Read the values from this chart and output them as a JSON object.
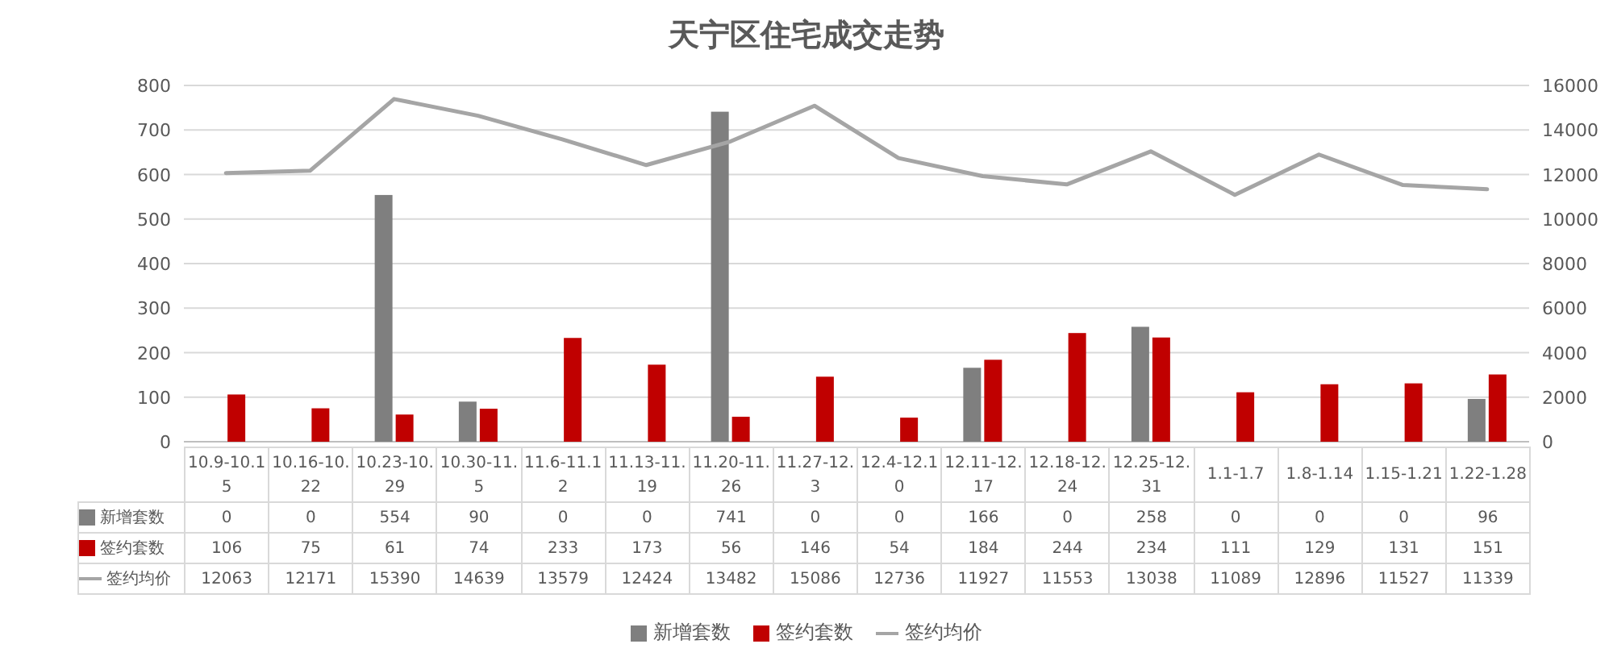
{
  "chart_data": {
    "type": "bar",
    "title": "天宁区住宅成交走势",
    "categories": [
      "10.9-10.15",
      "10.16-10.22",
      "10.23-10.29",
      "10.30-11.5",
      "11.6-11.12",
      "11.13-11.19",
      "11.20-11.26",
      "11.27-12.3",
      "12.4-12.10",
      "12.11-12.17",
      "12.18-12.24",
      "12.25-12.31",
      "1.1-1.7",
      "1.8-1.14",
      "1.15-1.21",
      "1.22-1.28"
    ],
    "series": [
      {
        "name": "新增套数",
        "color": "#7f7f7f",
        "values": [
          0,
          0,
          554,
          90,
          0,
          0,
          741,
          0,
          0,
          166,
          0,
          258,
          0,
          0,
          0,
          96
        ]
      },
      {
        "name": "签约套数",
        "color": "#c00000",
        "values": [
          106,
          75,
          61,
          74,
          233,
          173,
          56,
          146,
          54,
          184,
          244,
          234,
          111,
          129,
          131,
          151
        ]
      },
      {
        "name": "签约均价",
        "type": "line",
        "axis": "y2",
        "color": "#a5a5a5",
        "values": [
          12063,
          12171,
          15390,
          14639,
          13579,
          12424,
          13482,
          15086,
          12736,
          11927,
          11553,
          13038,
          11089,
          12896,
          11527,
          11339
        ]
      }
    ],
    "ylim": [
      0,
      800
    ],
    "yticks": [
      0,
      100,
      200,
      300,
      400,
      500,
      600,
      700,
      800
    ],
    "y2lim": [
      0,
      16000
    ],
    "y2ticks": [
      0,
      2000,
      4000,
      6000,
      8000,
      10000,
      12000,
      14000,
      16000
    ],
    "grid": "y",
    "legend": "bottom",
    "data_labels": true
  }
}
